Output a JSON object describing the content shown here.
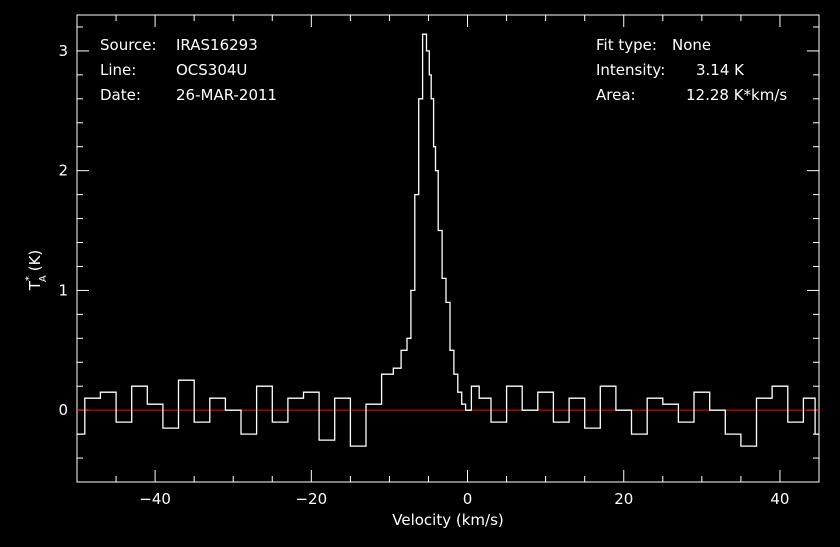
{
  "info": {
    "source_label": "Source:",
    "source_value": "IRAS16293",
    "line_label": "Line:",
    "line_value": "OCS304U",
    "date_label": "Date:",
    "date_value": "26-MAR-2011",
    "fit_label": "Fit type:",
    "fit_value": "None",
    "intensity_label": "Intensity:",
    "intensity_value": "3.14 K",
    "area_label": "Area:",
    "area_value": "12.28 K*km/s"
  },
  "colors": {
    "background": "#000000",
    "foreground": "#ffffff",
    "baseline": "#ff0000"
  },
  "chart_data": {
    "type": "line",
    "title": "",
    "xlabel": "Velocity (km/s)",
    "ylabel_main": "T",
    "ylabel_sup": "*",
    "ylabel_sub": "A",
    "ylabel_unit": "(K)",
    "xlim": [
      -50,
      45
    ],
    "ylim": [
      -0.6,
      3.3
    ],
    "xticks": [
      -40,
      -20,
      0,
      20,
      40
    ],
    "xtick_labels": [
      "−40",
      "−20",
      "0",
      "20",
      "40"
    ],
    "yticks": [
      0,
      1,
      2,
      3
    ],
    "ytick_labels": [
      "0",
      "1",
      "2",
      "3"
    ],
    "baseline_y": 0,
    "grid": false,
    "series": [
      {
        "x": [
          -50,
          -48,
          -46,
          -44,
          -42,
          -40,
          -38,
          -36,
          -34,
          -32,
          -30,
          -28,
          -26,
          -24,
          -22,
          -20,
          -18,
          -16,
          -14,
          -12,
          -10,
          -9,
          -8,
          -7.5,
          -7,
          -6.5,
          -6,
          -5.5,
          -5,
          -4.8,
          -4.5,
          -4.2,
          -4,
          -3.5,
          -3,
          -2.5,
          -2,
          -1.5,
          -1,
          -0.5,
          0,
          1,
          2,
          4,
          6,
          8,
          10,
          12,
          14,
          16,
          18,
          20,
          22,
          24,
          26,
          28,
          30,
          32,
          34,
          36,
          38,
          40,
          42,
          44,
          45
        ],
        "y": [
          -0.2,
          0.1,
          0.15,
          -0.1,
          0.2,
          0.05,
          -0.15,
          0.25,
          -0.1,
          0.1,
          0,
          -0.2,
          0.2,
          -0.1,
          0.1,
          0.15,
          -0.25,
          0.1,
          -0.3,
          0.05,
          0.3,
          0.35,
          0.5,
          0.6,
          1.0,
          1.8,
          2.6,
          3.14,
          3.0,
          2.8,
          2.6,
          2.2,
          2.0,
          1.5,
          1.1,
          0.9,
          0.5,
          0.3,
          0.15,
          0.05,
          0,
          0.2,
          0.1,
          -0.1,
          0.2,
          0,
          0.15,
          -0.1,
          0.1,
          -0.15,
          0.2,
          0,
          -0.2,
          0.1,
          0.05,
          -0.1,
          0.15,
          0,
          -0.2,
          -0.3,
          0.1,
          0.2,
          -0.1,
          0.1,
          -0.2
        ]
      }
    ]
  }
}
